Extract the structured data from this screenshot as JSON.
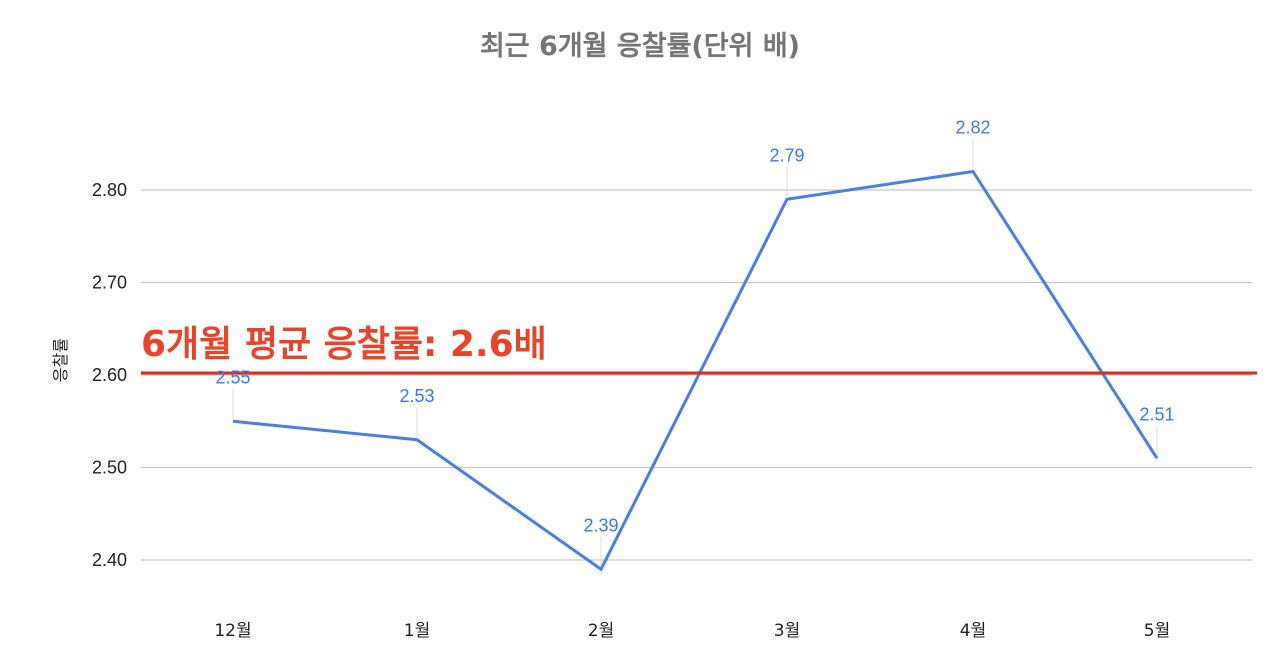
{
  "chart_data": {
    "type": "line",
    "title": "최근 6개월 응찰률(단위 배)",
    "xlabel": "",
    "ylabel": "응찰률",
    "categories": [
      "12월",
      "1월",
      "2월",
      "3월",
      "4월",
      "5월"
    ],
    "series": [
      {
        "name": "응찰률",
        "values": [
          2.55,
          2.53,
          2.39,
          2.79,
          2.82,
          2.51
        ],
        "data_labels": [
          "2.55",
          "2.53",
          "2.39",
          "2.79",
          "2.82",
          "2.51"
        ],
        "color": "#4a7fe0"
      }
    ],
    "ylim": [
      2.4,
      2.8
    ],
    "yticks": [
      "2.40",
      "2.50",
      "2.60",
      "2.70",
      "2.80"
    ],
    "grid": true,
    "legend": "none",
    "annotations": [
      {
        "type": "horizontal_line",
        "value": 2.6,
        "color": "#e02a1d",
        "label": "6개월 평균 응찰률: 2.6배",
        "label_color": "#e8442a"
      }
    ]
  },
  "colors": {
    "series": "#4a7fe0",
    "data_label": "#3b78e7",
    "average_line": "#e02a1d",
    "average_label": "#e8442a",
    "title": "#757575",
    "grid": "#c6c6c6"
  }
}
